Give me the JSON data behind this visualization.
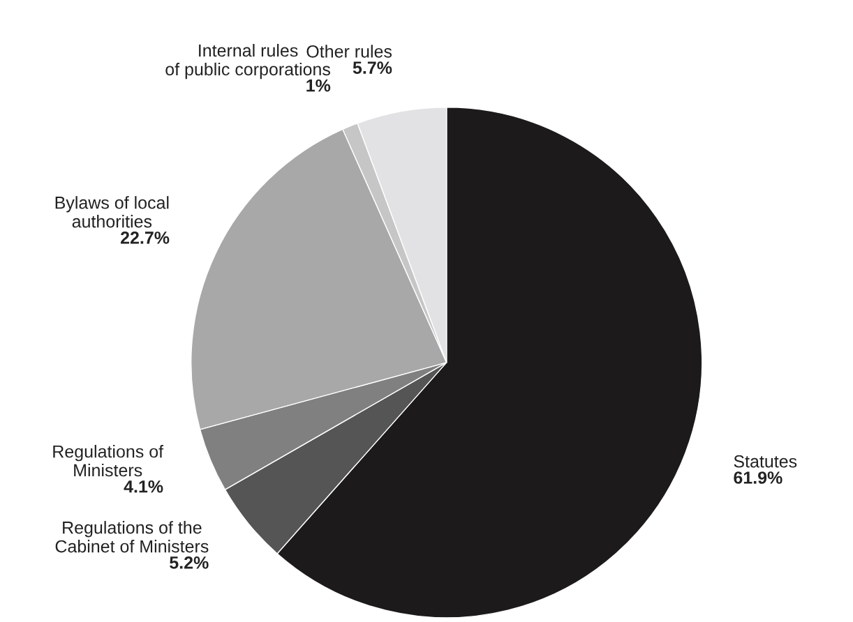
{
  "chart_data": {
    "type": "pie",
    "categories": [
      "Statutes",
      "Regulations of the\nCabinet of Ministers",
      "Regulations of\nMinisters",
      "Bylaws of local\nauthorities",
      "Internal rules\nof public corporations",
      "Other rules"
    ],
    "values": [
      61.9,
      5.2,
      4.1,
      22.7,
      1,
      5.7
    ],
    "value_labels": [
      "61.9%",
      "5.2%",
      "4.1%",
      "22.7%",
      "1%",
      "5.7%"
    ],
    "colors": [
      "#1c1a1b",
      "#555555",
      "#808080",
      "#a8a8a8",
      "#c6c6c6",
      "#e2e2e4"
    ]
  }
}
